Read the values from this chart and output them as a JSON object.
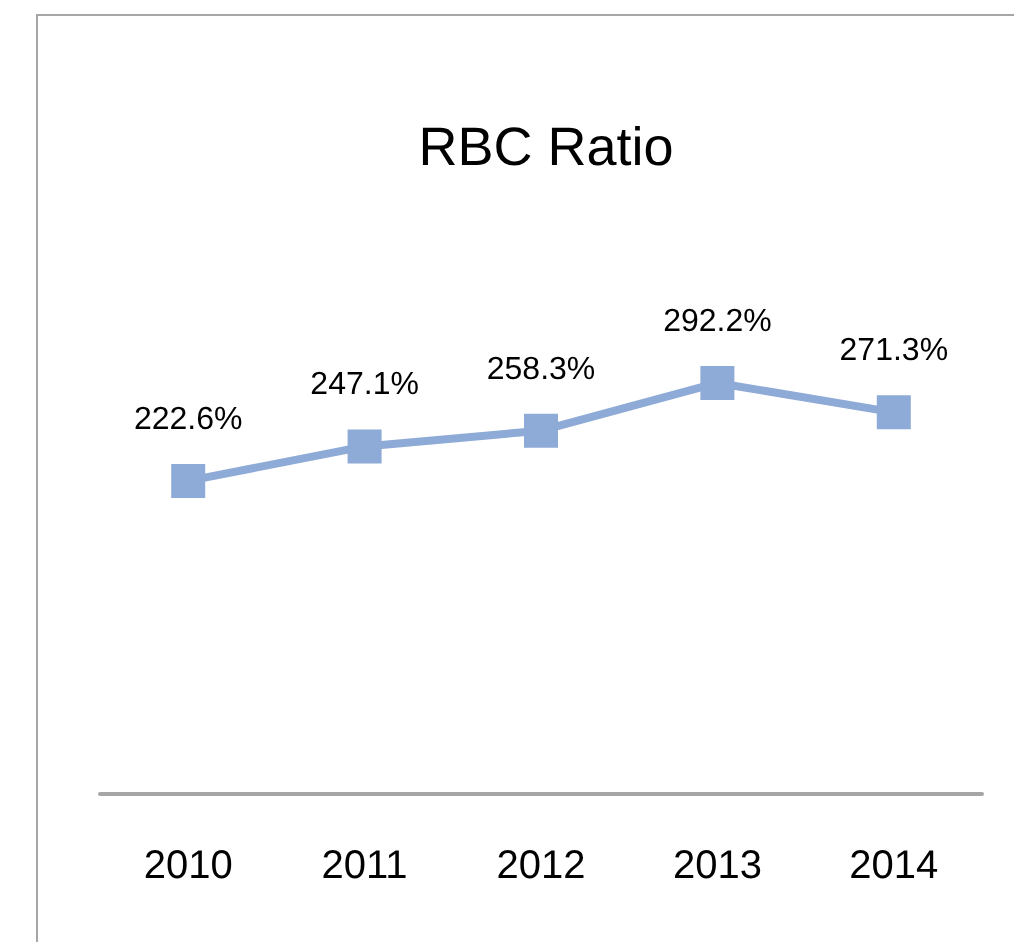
{
  "chart_data": {
    "type": "line",
    "title": "RBC Ratio",
    "categories": [
      "2010",
      "2011",
      "2012",
      "2013",
      "2014"
    ],
    "series": [
      {
        "color": "#8eaad6",
        "values": [
          222.6,
          247.1,
          258.3,
          292.2,
          271.3
        ],
        "value_labels": [
          "222.6%",
          "247.1%",
          "258.3%",
          "292.2%",
          "271.3%"
        ]
      }
    ],
    "tick_labels": "x",
    "grid": false,
    "marker": "square",
    "line_style": "solid"
  }
}
